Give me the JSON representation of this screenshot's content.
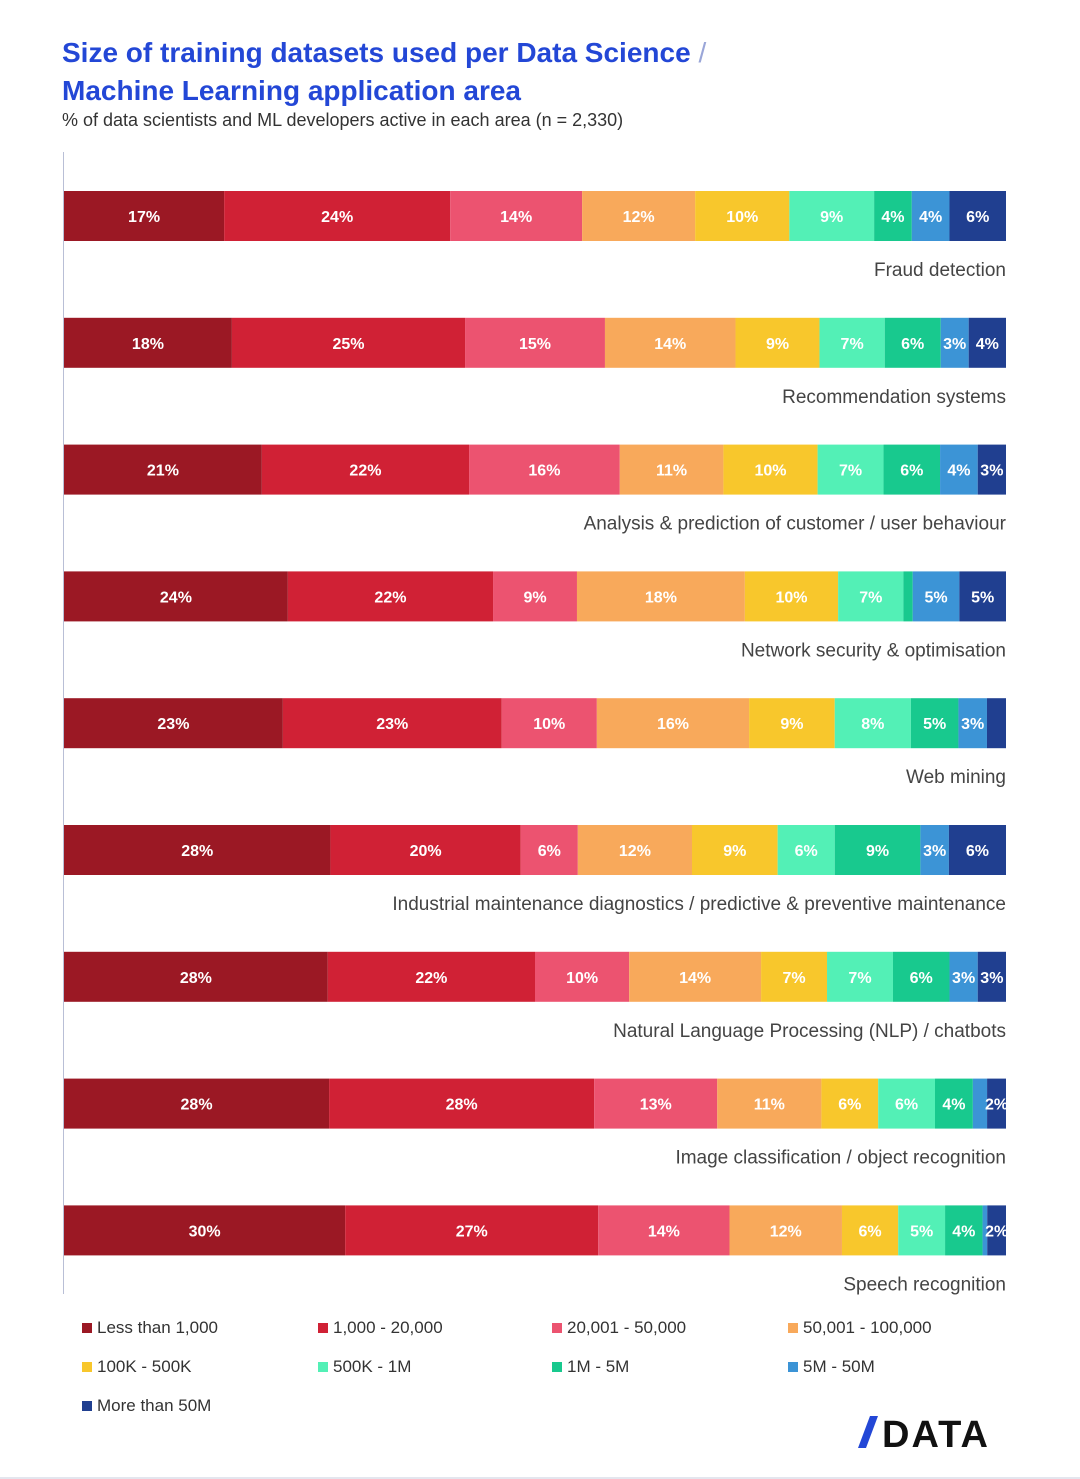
{
  "title_line1": "Size of training datasets used per Data Science",
  "title_slash": "/",
  "title_line2": "Machine Learning application area",
  "subtitle": "% of data scientists and ML developers active in each area (n = 2,330)",
  "logo_text": "DATA",
  "chart_data": {
    "type": "bar",
    "orientation": "horizontal",
    "stacked": true,
    "title": "Size of training datasets used per Data Science / Machine Learning application area",
    "subtitle": "% of data scientists and ML developers active in each area (n = 2,330)",
    "legend_position": "bottom",
    "grid": false,
    "categories": [
      "Fraud detection",
      "Recommendation systems",
      "Analysis & prediction of customer / user behaviour",
      "Network security & optimisation",
      "Web mining",
      "Industrial maintenance diagnostics / predictive & preventive maintenance",
      "Natural Language Processing (NLP) / chatbots",
      "Image classification / object recognition",
      "Speech recognition"
    ],
    "series": [
      {
        "name": "Less than 1,000",
        "color": "#9b1824",
        "values": [
          17,
          18,
          21,
          24,
          23,
          28,
          28,
          28,
          30
        ],
        "labels": [
          "17%",
          "18%",
          "21%",
          "24%",
          "23%",
          "28%",
          "28%",
          "28%",
          "30%"
        ]
      },
      {
        "name": "1,000 - 20,000",
        "color": "#d02135",
        "values": [
          24,
          25,
          22,
          22,
          23,
          20,
          22,
          28,
          27
        ],
        "labels": [
          "24%",
          "25%",
          "22%",
          "22%",
          "23%",
          "20%",
          "22%",
          "28%",
          "27%"
        ]
      },
      {
        "name": "20,001 - 50,000",
        "color": "#ec5370",
        "values": [
          14,
          15,
          16,
          9,
          10,
          6,
          10,
          13,
          14
        ],
        "labels": [
          "14%",
          "15%",
          "16%",
          "9%",
          "10%",
          "6%",
          "10%",
          "13%",
          "14%"
        ]
      },
      {
        "name": "50,001 - 100,000",
        "color": "#f8a95b",
        "values": [
          12,
          14,
          11,
          18,
          16,
          12,
          14,
          11,
          12
        ],
        "labels": [
          "12%",
          "14%",
          "11%",
          "18%",
          "16%",
          "12%",
          "14%",
          "11%",
          "12%"
        ]
      },
      {
        "name": "100K - 500K",
        "color": "#f8c72c",
        "values": [
          10,
          9,
          10,
          10,
          9,
          9,
          7,
          6,
          6
        ],
        "labels": [
          "10%",
          "9%",
          "10%",
          "10%",
          "9%",
          "9%",
          "7%",
          "6%",
          "6%"
        ]
      },
      {
        "name": "500K - 1M",
        "color": "#53f0b6",
        "values": [
          9,
          7,
          7,
          7,
          8,
          6,
          7,
          6,
          5
        ],
        "labels": [
          "9%",
          "7%",
          "7%",
          "7%",
          "8%",
          "6%",
          "7%",
          "6%",
          "5%"
        ]
      },
      {
        "name": "1M - 5M",
        "color": "#18c98e",
        "values": [
          4,
          6,
          6,
          1,
          5,
          9,
          6,
          4,
          4
        ],
        "labels": [
          "4%",
          "6%",
          "6%",
          "",
          "5%",
          "9%",
          "6%",
          "4%",
          "4%"
        ]
      },
      {
        "name": "5M - 50M",
        "color": "#3c94d6",
        "values": [
          4,
          3,
          4,
          5,
          3,
          3,
          3,
          1.5,
          0.5
        ],
        "labels": [
          "4%",
          "3%",
          "4%",
          "5%",
          "3%",
          "3%",
          "3%",
          "",
          ""
        ]
      },
      {
        "name": "More than 50M",
        "color": "#203f90",
        "values": [
          6,
          4,
          3,
          5,
          2,
          6,
          3,
          2,
          2
        ],
        "labels": [
          "6%",
          "4%",
          "3%",
          "5%",
          "",
          "6%",
          "3%",
          "2%",
          "2%"
        ]
      }
    ]
  }
}
